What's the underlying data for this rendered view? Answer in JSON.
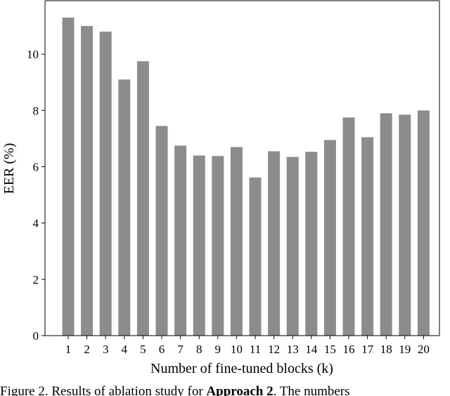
{
  "chart_data": {
    "type": "bar",
    "categories": [
      "1",
      "2",
      "3",
      "4",
      "5",
      "6",
      "7",
      "8",
      "9",
      "10",
      "11",
      "12",
      "13",
      "14",
      "15",
      "16",
      "17",
      "18",
      "19",
      "20"
    ],
    "values": [
      11.3,
      11.0,
      10.8,
      9.1,
      9.75,
      7.45,
      6.75,
      6.4,
      6.38,
      6.7,
      5.62,
      6.55,
      6.35,
      6.53,
      6.95,
      7.75,
      7.05,
      7.9,
      7.85,
      8.0
    ],
    "xlabel": "Number of fine-tuned blocks (k)",
    "ylabel": "EER (%)",
    "ylim": [
      0,
      11.9
    ],
    "yticks": [
      0,
      2,
      4,
      6,
      8,
      10
    ],
    "grid": false,
    "bar_color": "#8c8c8c",
    "axis_color": "#000000"
  },
  "caption": {
    "prefix": "Figure 2. Results of ablation study for ",
    "bold": "Approach 2",
    "suffix": ". The numbers"
  }
}
